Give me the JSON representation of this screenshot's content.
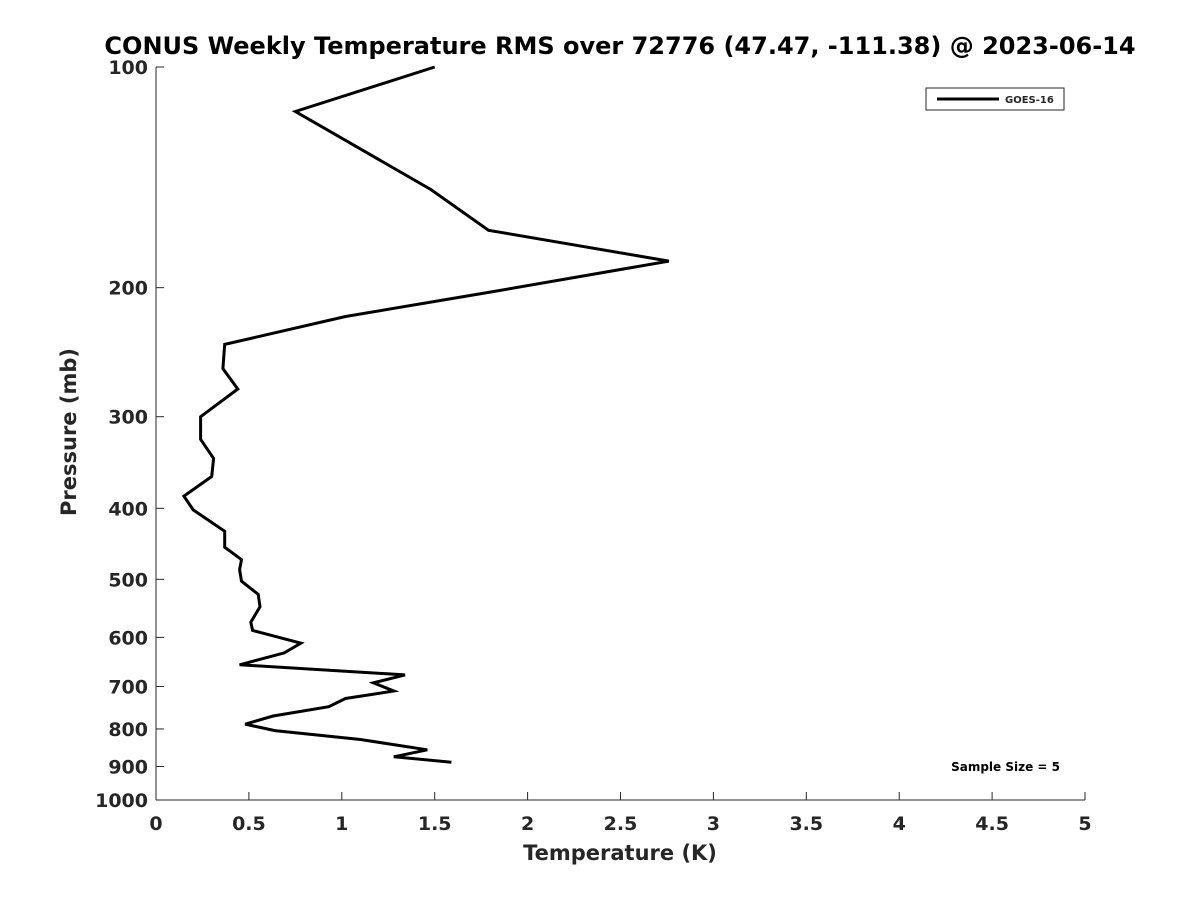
{
  "chart_data": {
    "type": "line",
    "title": "CONUS Weekly Temperature RMS over 72776 (47.47, -111.38) @ 2023-06-14",
    "xlabel": "Temperature (K)",
    "ylabel": "Pressure (mb)",
    "xlim": [
      0,
      5
    ],
    "ylim": [
      100,
      1000
    ],
    "yscale": "log",
    "yreversed": true,
    "x_ticks": [
      "0",
      "0.5",
      "1",
      "1.5",
      "2",
      "2.5",
      "3",
      "3.5",
      "4",
      "4.5",
      "5"
    ],
    "y_ticks": [
      "100",
      "200",
      "300",
      "400",
      "500",
      "600",
      "700",
      "800",
      "900",
      "1000"
    ],
    "grid": false,
    "legend_position": "top-right",
    "annotation": "Sample Size = 5",
    "series": [
      {
        "name": "GOES-16",
        "color": "#000000",
        "x": [
          1.5,
          0.75,
          1.48,
          1.79,
          2.76,
          1.79,
          1.02,
          0.37,
          0.36,
          0.44,
          0.24,
          0.24,
          0.31,
          0.3,
          0.15,
          0.2,
          0.37,
          0.37,
          0.46,
          0.45,
          0.46,
          0.55,
          0.56,
          0.51,
          0.52,
          0.78,
          0.69,
          0.45,
          1.34,
          1.17,
          1.28,
          1.02,
          0.93,
          0.63,
          0.48,
          0.64,
          1.1,
          1.46,
          1.28,
          1.59
        ],
        "y": [
          100,
          115,
          147,
          167,
          184,
          203,
          219,
          239,
          258,
          275,
          300,
          322,
          342,
          362,
          385,
          402,
          430,
          452,
          470,
          485,
          503,
          524,
          545,
          572,
          587,
          611,
          630,
          654,
          675,
          692,
          710,
          727,
          746,
          768,
          788,
          804,
          827,
          854,
          873,
          888
        ]
      }
    ]
  }
}
